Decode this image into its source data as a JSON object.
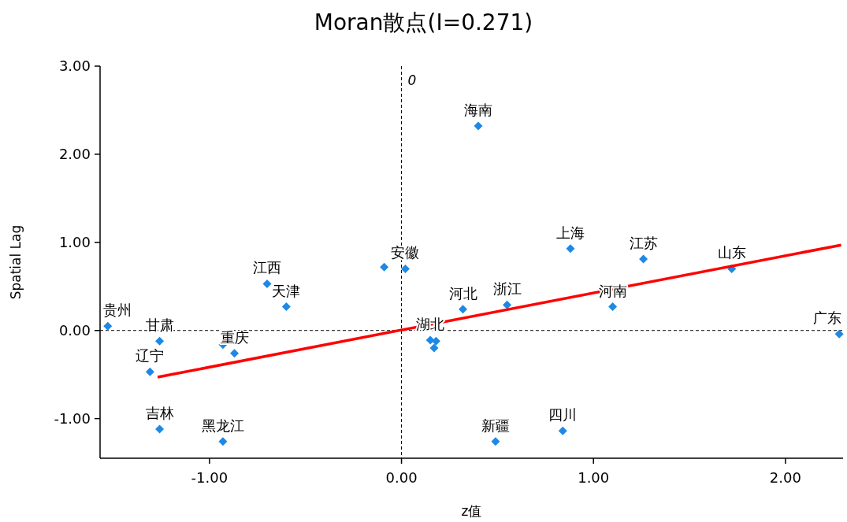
{
  "chart_data": {
    "type": "scatter",
    "title": "Moran散点(I=0.271)",
    "xlabel": "z值",
    "ylabel": "Spatial Lag",
    "xlim": [
      -1.57,
      2.3
    ],
    "ylim": [
      -1.45,
      3.0
    ],
    "xticks": [
      {
        "value": -1,
        "label": "-1.00"
      },
      {
        "value": 0,
        "label": "0.00"
      },
      {
        "value": 1,
        "label": "1.00"
      },
      {
        "value": 2,
        "label": "2.00"
      }
    ],
    "yticks": [
      {
        "value": -1,
        "label": "-1.00"
      },
      {
        "value": 0,
        "label": "0.00"
      },
      {
        "value": 1,
        "label": "1.00"
      },
      {
        "value": 2,
        "label": "2.00"
      },
      {
        "value": 3,
        "label": "3.00"
      }
    ],
    "grid": false,
    "series": [
      {
        "color": "#1e88e5",
        "marker": "diamond",
        "x": [
          -1.53,
          -1.26,
          -1.31,
          -1.26,
          -0.93,
          -0.93,
          -0.87,
          -0.7,
          -0.6,
          -0.09,
          0.02,
          0.4,
          0.15,
          0.18,
          0.17,
          0.32,
          0.55,
          0.88,
          1.26,
          1.1,
          1.72,
          2.28,
          0.49,
          0.84
        ],
        "values": [
          0.05,
          -0.12,
          -0.47,
          -1.12,
          -1.26,
          -0.16,
          -0.26,
          0.53,
          0.27,
          0.72,
          0.7,
          2.32,
          -0.11,
          -0.12,
          -0.2,
          0.24,
          0.29,
          0.93,
          0.81,
          0.27,
          0.7,
          -0.04,
          -1.26,
          -1.14
        ]
      },
      {
        "type": "line",
        "color": "#ff0000",
        "line_style": "solid",
        "marker": "none",
        "x": [
          -1.27,
          2.29
        ],
        "values": [
          -0.53,
          0.97
        ]
      }
    ],
    "ref_lines": [
      {
        "axis": "x",
        "value": 0,
        "label": "0",
        "line_style": "dashed",
        "color": "#000000"
      },
      {
        "axis": "y",
        "value": 0,
        "line_style": "dashed",
        "color": "#000000"
      }
    ],
    "annotations": [
      {
        "text": "贵州",
        "x": -1.53,
        "y": 0.05
      },
      {
        "text": "甘肃",
        "x": -1.26,
        "y": -0.12
      },
      {
        "text": "辽宁",
        "x": -1.31,
        "y": -0.47
      },
      {
        "text": "吉林",
        "x": -1.26,
        "y": -1.12
      },
      {
        "text": "黑龙江",
        "x": -0.93,
        "y": -1.26
      },
      {
        "text": "重庆",
        "x": -0.87,
        "y": -0.26
      },
      {
        "text": "江西",
        "x": -0.7,
        "y": 0.53
      },
      {
        "text": "天津",
        "x": -0.6,
        "y": 0.27
      },
      {
        "text": "安徽",
        "x": 0.02,
        "y": 0.7
      },
      {
        "text": "海南",
        "x": 0.4,
        "y": 2.32
      },
      {
        "text": "湖北",
        "x": 0.15,
        "y": -0.11
      },
      {
        "text": "河北",
        "x": 0.32,
        "y": 0.24
      },
      {
        "text": "浙江",
        "x": 0.55,
        "y": 0.29
      },
      {
        "text": "上海",
        "x": 0.88,
        "y": 0.93
      },
      {
        "text": "江苏",
        "x": 1.26,
        "y": 0.81
      },
      {
        "text": "河南",
        "x": 1.1,
        "y": 0.27
      },
      {
        "text": "山东",
        "x": 1.72,
        "y": 0.7
      },
      {
        "text": "广东",
        "x": 2.28,
        "y": -0.04
      },
      {
        "text": "新疆",
        "x": 0.49,
        "y": -1.26
      },
      {
        "text": "四川",
        "x": 0.84,
        "y": -1.14
      }
    ]
  }
}
